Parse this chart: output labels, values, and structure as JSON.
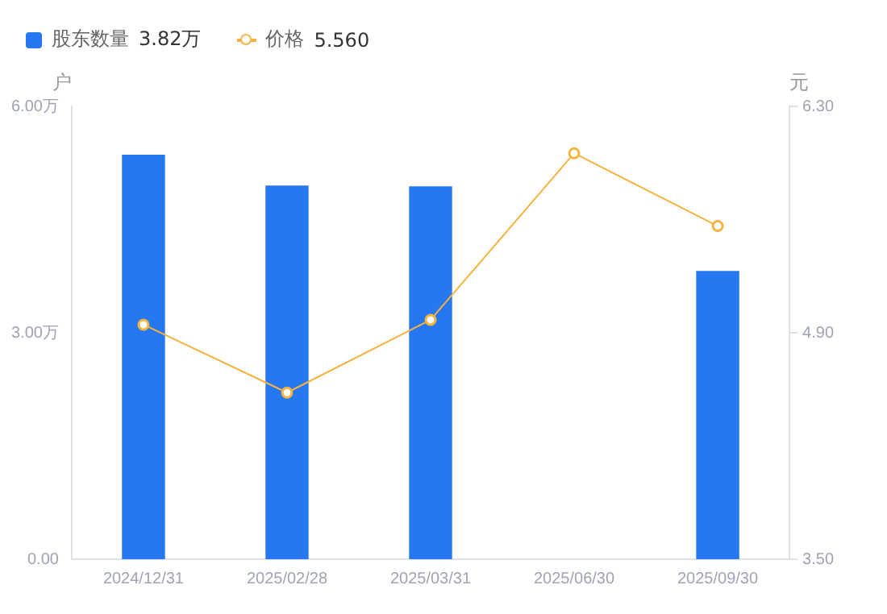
{
  "chart_data": {
    "type": "bar",
    "ylabel": "户",
    "y2label": "元",
    "categories": [
      "2024/12/31",
      "2025/02/28",
      "2025/03/31",
      "2025/06/30",
      "2025/09/30"
    ],
    "series": [
      {
        "name": "股东数量",
        "color": "#2677f2",
        "values": [
          5.36,
          4.95,
          4.94,
          null,
          3.82
        ]
      },
      {
        "name": "价格",
        "type": "line",
        "axis": "y2",
        "color": "#f7b33f",
        "values": [
          4.95,
          4.53,
          4.98,
          6.01,
          5.56
        ]
      }
    ],
    "ylim": [
      0,
      6
    ],
    "yticks": [
      {
        "value": 0,
        "label": "0.00"
      },
      {
        "value": 3,
        "label": "3.00万"
      },
      {
        "value": 6,
        "label": "6.00万"
      }
    ],
    "y2lim": [
      3.5,
      6.3
    ],
    "y2ticks": [
      {
        "value": 3.5,
        "label": "3.50"
      },
      {
        "value": 4.9,
        "label": "4.90"
      },
      {
        "value": 6.3,
        "label": "6.30"
      }
    ],
    "annotations": [
      "3.82万",
      "5.560"
    ],
    "grid": false,
    "legend": "top left",
    "marker": "circle"
  }
}
